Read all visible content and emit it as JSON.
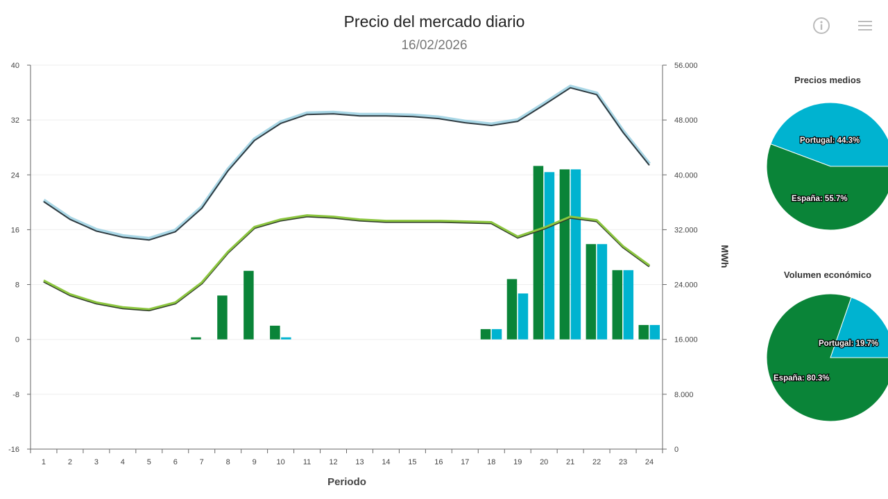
{
  "header": {
    "title": "Precio del mercado diario",
    "subtitle": "16/02/2026"
  },
  "toolbar": {
    "info_icon": "info-circle-icon",
    "menu_icon": "hamburger-menu-icon"
  },
  "colors": {
    "espana": "#0a8438",
    "portugal": "#00b3d0",
    "upper_line": "#2e3a40",
    "upper_line_halo": "#a9d7e6",
    "lower_line": "#8cc63f",
    "lower_line_shadow": "#2e3a2a"
  },
  "chart_data": [
    {
      "type": "bar+line",
      "xlabel": "Periodo",
      "ylabel_right": "MWh",
      "categories": [
        "1",
        "2",
        "3",
        "4",
        "5",
        "6",
        "7",
        "8",
        "9",
        "10",
        "11",
        "12",
        "13",
        "14",
        "15",
        "16",
        "17",
        "18",
        "19",
        "20",
        "21",
        "22",
        "23",
        "24"
      ],
      "y_left": {
        "lim": [
          -16,
          40
        ],
        "ticks": [
          "-16",
          "-8",
          "0",
          "8",
          "16",
          "24",
          "32",
          "40"
        ]
      },
      "y_right": {
        "lim": [
          0,
          56000
        ],
        "ticks": [
          "0",
          "8.000",
          "16.000",
          "24.000",
          "32.000",
          "40.000",
          "48.000",
          "56.000"
        ]
      },
      "grid": true,
      "bars": [
        {
          "color_key": "espana",
          "axis": "left",
          "values": [
            0,
            0,
            0,
            0,
            0,
            0,
            0.3,
            6.4,
            10.0,
            2.0,
            0,
            0,
            0,
            0,
            0,
            0,
            0,
            1.5,
            8.8,
            25.3,
            24.8,
            13.9,
            10.1,
            2.1
          ]
        },
        {
          "color_key": "portugal",
          "axis": "left",
          "values": [
            0,
            0,
            0,
            0,
            0,
            0,
            0,
            0,
            0,
            0.3,
            0,
            0,
            0,
            0,
            0,
            0,
            0,
            1.5,
            6.7,
            24.4,
            24.8,
            13.9,
            10.1,
            2.1
          ]
        }
      ],
      "lines": [
        {
          "style": "upper",
          "axis": "right",
          "values": [
            36200,
            33600,
            31900,
            31000,
            30600,
            31800,
            35200,
            40700,
            45100,
            47600,
            48900,
            49000,
            48700,
            48700,
            48600,
            48300,
            47700,
            47300,
            47900,
            50300,
            52800,
            51800,
            46300,
            41500
          ]
        },
        {
          "style": "lower",
          "axis": "right",
          "values": [
            24600,
            22600,
            21400,
            20700,
            20400,
            21400,
            24300,
            28800,
            32400,
            33500,
            34100,
            33900,
            33500,
            33300,
            33300,
            33300,
            33200,
            33100,
            31000,
            32300,
            33900,
            33400,
            29600,
            26800
          ]
        }
      ]
    },
    {
      "type": "pie",
      "title": "Precios medios",
      "slices": [
        {
          "label": "Portugal: 44.3%",
          "name": "Portugal",
          "value": 44.3,
          "color_key": "portugal"
        },
        {
          "label": "España: 55.7%",
          "name": "España",
          "value": 55.7,
          "color_key": "espana"
        }
      ]
    },
    {
      "type": "pie",
      "title": "Volumen económico",
      "slices": [
        {
          "label": "Portugal: 19.7%",
          "name": "Portugal",
          "value": 19.7,
          "color_key": "portugal"
        },
        {
          "label": "España: 80.3%",
          "name": "España",
          "value": 80.3,
          "color_key": "espana"
        }
      ]
    }
  ]
}
